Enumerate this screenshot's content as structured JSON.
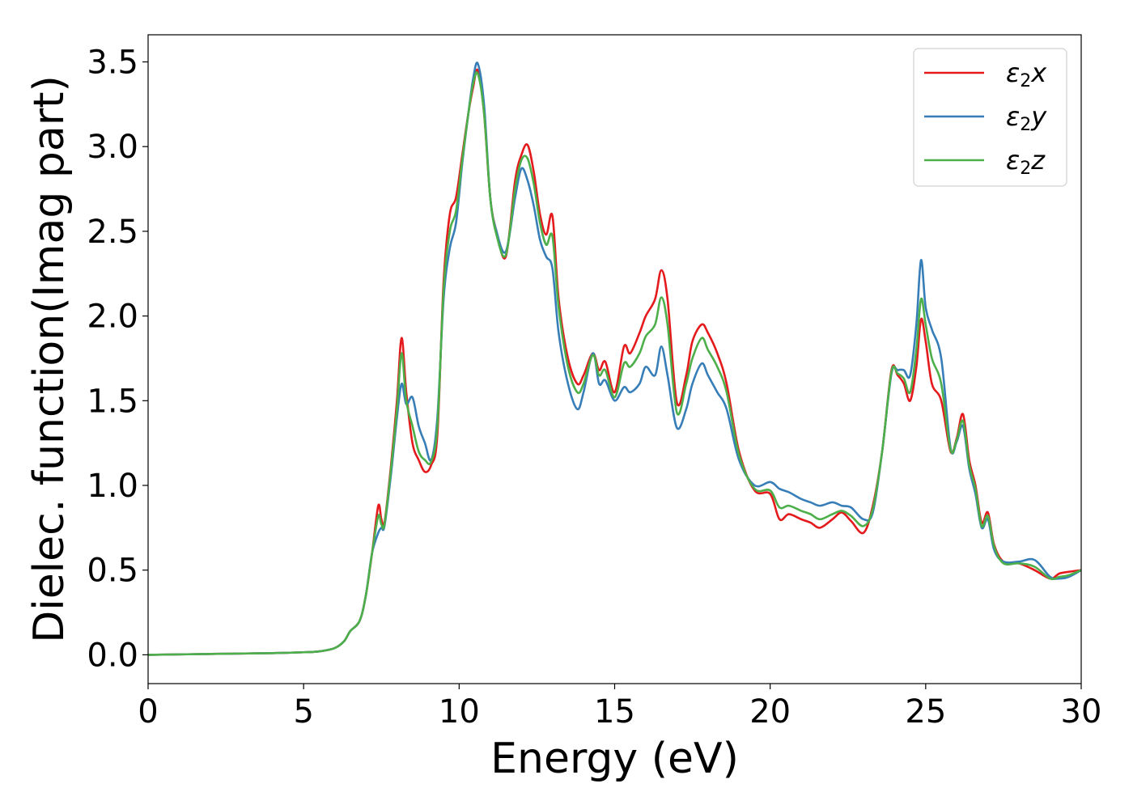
{
  "chart_data": {
    "type": "line",
    "title": "",
    "xlabel": "Energy (eV)",
    "ylabel": "Dielec. function(Imag part)",
    "xlim": [
      0,
      30
    ],
    "ylim": [
      -0.17,
      3.66
    ],
    "xticks": [
      0,
      5,
      10,
      15,
      20,
      25,
      30
    ],
    "yticks": [
      0.0,
      0.5,
      1.0,
      1.5,
      2.0,
      2.5,
      3.0,
      3.5
    ],
    "xtick_labels": [
      "0",
      "5",
      "10",
      "15",
      "20",
      "25",
      "30"
    ],
    "ytick_labels": [
      "0.0",
      "0.5",
      "1.0",
      "1.5",
      "2.0",
      "2.5",
      "3.0",
      "3.5"
    ],
    "grid": false,
    "legend_position": "top-right",
    "series": [
      {
        "name": "ε₂x",
        "legend": {
          "base": "ε",
          "sub": "2",
          "var": "x"
        },
        "color": "#e41a1c",
        "x": [
          0,
          2,
          4,
          5,
          5.5,
          6,
          6.3,
          6.5,
          6.8,
          7.0,
          7.2,
          7.4,
          7.5,
          7.6,
          7.8,
          8.0,
          8.15,
          8.3,
          8.5,
          8.7,
          8.9,
          9.1,
          9.3,
          9.5,
          9.7,
          9.9,
          10.1,
          10.3,
          10.45,
          10.6,
          10.8,
          11.0,
          11.2,
          11.5,
          11.8,
          12.0,
          12.2,
          12.4,
          12.6,
          12.8,
          13.0,
          13.2,
          13.5,
          13.8,
          14.0,
          14.3,
          14.5,
          14.7,
          15.0,
          15.3,
          15.5,
          15.8,
          16.0,
          16.3,
          16.5,
          16.7,
          17.0,
          17.3,
          17.5,
          17.8,
          18.0,
          18.3,
          18.6,
          19.0,
          19.5,
          20.0,
          20.3,
          20.6,
          21.0,
          21.3,
          21.6,
          22.0,
          22.3,
          22.6,
          23.0,
          23.3,
          23.6,
          23.9,
          24.1,
          24.3,
          24.5,
          24.7,
          24.85,
          25.0,
          25.2,
          25.5,
          25.8,
          26.0,
          26.2,
          26.4,
          26.6,
          26.8,
          27.0,
          27.2,
          27.5,
          28.0,
          28.5,
          29.0,
          29.3,
          29.6,
          30.0
        ],
        "values": [
          0.0,
          0.005,
          0.01,
          0.015,
          0.02,
          0.04,
          0.08,
          0.14,
          0.2,
          0.35,
          0.6,
          0.88,
          0.8,
          0.78,
          1.1,
          1.5,
          1.87,
          1.55,
          1.25,
          1.15,
          1.08,
          1.12,
          1.3,
          2.2,
          2.6,
          2.7,
          2.95,
          3.2,
          3.35,
          3.45,
          3.2,
          2.7,
          2.5,
          2.35,
          2.8,
          2.95,
          3.01,
          2.85,
          2.6,
          2.48,
          2.59,
          2.1,
          1.75,
          1.6,
          1.65,
          1.78,
          1.68,
          1.73,
          1.55,
          1.82,
          1.78,
          1.9,
          2.0,
          2.1,
          2.27,
          2.1,
          1.49,
          1.65,
          1.85,
          1.95,
          1.9,
          1.78,
          1.6,
          1.2,
          0.97,
          0.95,
          0.8,
          0.83,
          0.8,
          0.78,
          0.75,
          0.8,
          0.84,
          0.79,
          0.72,
          0.88,
          1.2,
          1.68,
          1.65,
          1.6,
          1.5,
          1.7,
          1.98,
          1.85,
          1.6,
          1.5,
          1.2,
          1.28,
          1.42,
          1.15,
          1.0,
          0.78,
          0.84,
          0.65,
          0.55,
          0.54,
          0.5,
          0.45,
          0.48,
          0.49,
          0.5
        ]
      },
      {
        "name": "ε₂y",
        "legend": {
          "base": "ε",
          "sub": "2",
          "var": "y"
        },
        "color": "#377eb8",
        "x": [
          0,
          2,
          4,
          5,
          5.5,
          6,
          6.3,
          6.5,
          6.8,
          7.0,
          7.2,
          7.4,
          7.5,
          7.6,
          7.8,
          8.0,
          8.15,
          8.3,
          8.5,
          8.7,
          8.9,
          9.1,
          9.3,
          9.5,
          9.7,
          9.9,
          10.1,
          10.3,
          10.45,
          10.6,
          10.8,
          11.0,
          11.2,
          11.5,
          11.8,
          12.0,
          12.2,
          12.4,
          12.6,
          12.8,
          13.0,
          13.2,
          13.5,
          13.8,
          14.0,
          14.3,
          14.5,
          14.7,
          15.0,
          15.3,
          15.5,
          15.8,
          16.0,
          16.3,
          16.5,
          16.7,
          17.0,
          17.3,
          17.5,
          17.8,
          18.0,
          18.3,
          18.6,
          19.0,
          19.5,
          20.0,
          20.3,
          20.6,
          21.0,
          21.3,
          21.6,
          22.0,
          22.3,
          22.6,
          23.0,
          23.3,
          23.6,
          23.9,
          24.1,
          24.3,
          24.5,
          24.7,
          24.85,
          25.0,
          25.2,
          25.5,
          25.8,
          26.0,
          26.2,
          26.4,
          26.6,
          26.8,
          27.0,
          27.2,
          27.5,
          28.0,
          28.5,
          29.0,
          29.3,
          29.6,
          30.0
        ],
        "values": [
          0.0,
          0.005,
          0.01,
          0.015,
          0.02,
          0.04,
          0.08,
          0.14,
          0.2,
          0.35,
          0.6,
          0.72,
          0.75,
          0.76,
          1.05,
          1.4,
          1.6,
          1.48,
          1.52,
          1.35,
          1.25,
          1.15,
          1.4,
          2.1,
          2.4,
          2.55,
          2.9,
          3.2,
          3.4,
          3.49,
          3.25,
          2.7,
          2.5,
          2.38,
          2.7,
          2.87,
          2.8,
          2.65,
          2.45,
          2.35,
          2.28,
          1.9,
          1.6,
          1.45,
          1.55,
          1.78,
          1.6,
          1.62,
          1.5,
          1.58,
          1.55,
          1.6,
          1.7,
          1.65,
          1.82,
          1.65,
          1.34,
          1.45,
          1.6,
          1.72,
          1.65,
          1.55,
          1.45,
          1.15,
          1.0,
          1.02,
          0.98,
          0.96,
          0.92,
          0.9,
          0.88,
          0.9,
          0.88,
          0.87,
          0.8,
          0.84,
          1.2,
          1.66,
          1.68,
          1.68,
          1.65,
          1.95,
          2.33,
          2.05,
          1.92,
          1.75,
          1.22,
          1.26,
          1.35,
          1.1,
          0.95,
          0.75,
          0.8,
          0.62,
          0.55,
          0.55,
          0.56,
          0.46,
          0.45,
          0.46,
          0.5
        ]
      },
      {
        "name": "ε₂z",
        "legend": {
          "base": "ε",
          "sub": "2",
          "var": "z"
        },
        "color": "#4daf4a",
        "x": [
          0,
          2,
          4,
          5,
          5.5,
          6,
          6.3,
          6.5,
          6.8,
          7.0,
          7.2,
          7.4,
          7.5,
          7.6,
          7.8,
          8.0,
          8.15,
          8.3,
          8.5,
          8.7,
          8.9,
          9.1,
          9.3,
          9.5,
          9.7,
          9.9,
          10.1,
          10.3,
          10.45,
          10.6,
          10.8,
          11.0,
          11.2,
          11.5,
          11.8,
          12.0,
          12.2,
          12.4,
          12.6,
          12.8,
          13.0,
          13.2,
          13.5,
          13.8,
          14.0,
          14.3,
          14.5,
          14.7,
          15.0,
          15.3,
          15.5,
          15.8,
          16.0,
          16.3,
          16.5,
          16.7,
          17.0,
          17.3,
          17.5,
          17.8,
          18.0,
          18.3,
          18.6,
          19.0,
          19.5,
          20.0,
          20.3,
          20.6,
          21.0,
          21.3,
          21.6,
          22.0,
          22.3,
          22.6,
          23.0,
          23.3,
          23.6,
          23.9,
          24.1,
          24.3,
          24.5,
          24.7,
          24.85,
          25.0,
          25.2,
          25.5,
          25.8,
          26.0,
          26.2,
          26.4,
          26.6,
          26.8,
          27.0,
          27.2,
          27.5,
          28.0,
          28.5,
          29.0,
          29.3,
          29.6,
          30.0
        ],
        "values": [
          0.0,
          0.005,
          0.01,
          0.015,
          0.02,
          0.04,
          0.08,
          0.14,
          0.2,
          0.35,
          0.6,
          0.82,
          0.77,
          0.77,
          1.08,
          1.45,
          1.78,
          1.5,
          1.35,
          1.2,
          1.15,
          1.14,
          1.35,
          2.15,
          2.5,
          2.62,
          2.92,
          3.2,
          3.37,
          3.43,
          3.2,
          2.7,
          2.48,
          2.36,
          2.75,
          2.92,
          2.93,
          2.78,
          2.55,
          2.42,
          2.47,
          2.05,
          1.7,
          1.55,
          1.6,
          1.77,
          1.65,
          1.68,
          1.52,
          1.72,
          1.7,
          1.78,
          1.88,
          1.95,
          2.11,
          1.95,
          1.43,
          1.6,
          1.75,
          1.87,
          1.8,
          1.7,
          1.55,
          1.18,
          0.98,
          0.97,
          0.87,
          0.88,
          0.85,
          0.83,
          0.8,
          0.83,
          0.85,
          0.82,
          0.76,
          0.86,
          1.2,
          1.67,
          1.66,
          1.63,
          1.55,
          1.8,
          2.1,
          1.95,
          1.75,
          1.6,
          1.21,
          1.27,
          1.38,
          1.12,
          0.98,
          0.76,
          0.82,
          0.64,
          0.54,
          0.54,
          0.52,
          0.45,
          0.46,
          0.47,
          0.5
        ]
      }
    ]
  }
}
